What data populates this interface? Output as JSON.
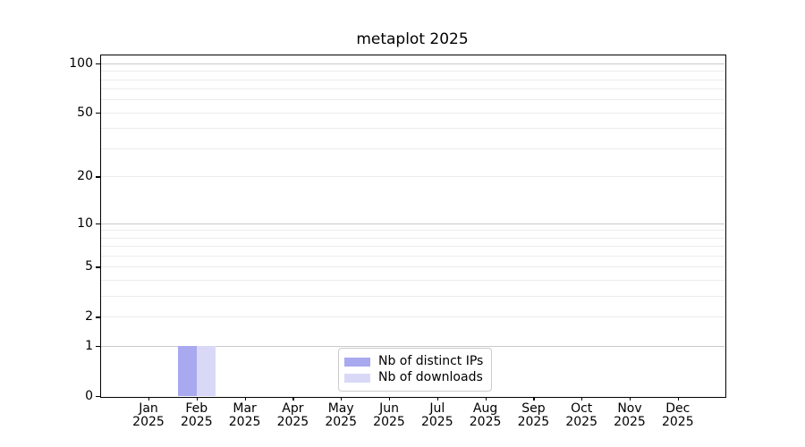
{
  "chart_data": {
    "type": "bar",
    "title": "metaplot 2025",
    "months": [
      "Jan",
      "Feb",
      "Mar",
      "Apr",
      "May",
      "Jun",
      "Jul",
      "Aug",
      "Sep",
      "Oct",
      "Nov",
      "Dec"
    ],
    "year": "2025",
    "series": [
      {
        "name": "Nb of distinct IPs",
        "color": "#a9a9f0",
        "values": [
          0,
          1,
          0,
          0,
          0,
          0,
          0,
          0,
          0,
          0,
          0,
          0
        ]
      },
      {
        "name": "Nb of downloads",
        "color": "#d9d9f7",
        "values": [
          0,
          1,
          0,
          0,
          0,
          0,
          0,
          0,
          0,
          0,
          0,
          0
        ]
      }
    ],
    "yscale": "log1p",
    "ylim": [
      0,
      113
    ],
    "yticks": [
      {
        "v": 0,
        "label": "0"
      },
      {
        "v": 1,
        "label": "1"
      },
      {
        "v": 2,
        "label": "2"
      },
      {
        "v": 5,
        "label": "5"
      },
      {
        "v": 10,
        "label": "10"
      },
      {
        "v": 20,
        "label": "20"
      },
      {
        "v": 50,
        "label": "50"
      },
      {
        "v": 100,
        "label": "100"
      }
    ],
    "grid_major_values": [
      1,
      10,
      100
    ],
    "grid_minor_values": [
      2,
      3,
      4,
      5,
      6,
      7,
      8,
      9,
      20,
      30,
      40,
      50,
      60,
      70,
      80,
      90
    ],
    "legend_position": "lower center",
    "colors": {
      "grid_major": "#c9c9c9",
      "grid_minor": "#ececec",
      "spine": "#000000",
      "background": "#ffffff"
    }
  }
}
